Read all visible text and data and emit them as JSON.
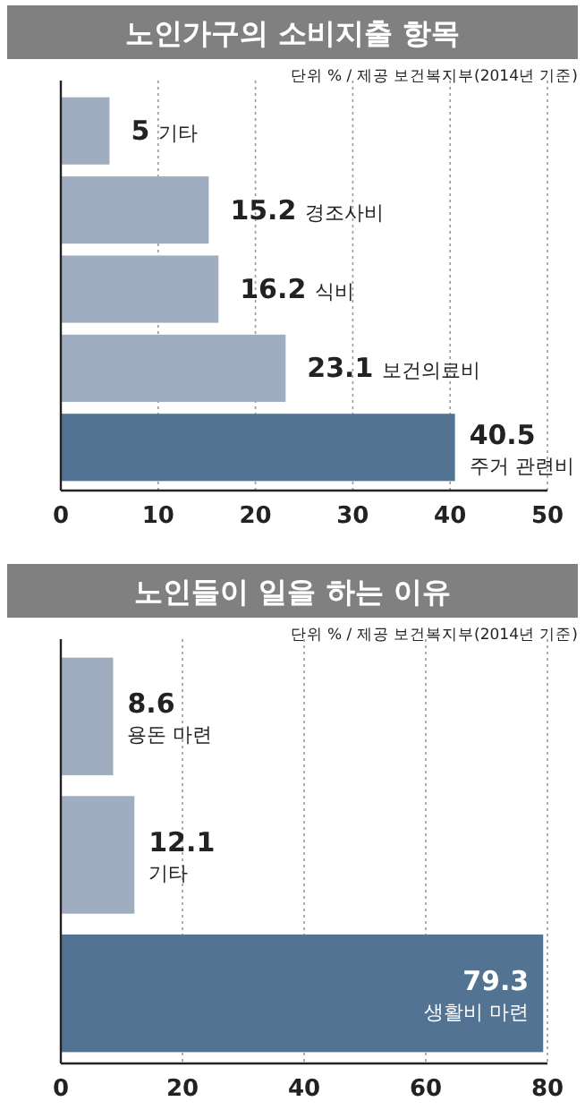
{
  "chart_data": [
    {
      "type": "bar",
      "orientation": "horizontal",
      "title": "노인가구의 소비지출 항목",
      "annotations": [
        "단위 % / 제공 보건복지부(2014년 기준)"
      ],
      "categories": [
        "기타",
        "경조사비",
        "식비",
        "보건의료비",
        "주거 관련비"
      ],
      "values": [
        5,
        15.2,
        16.2,
        23.1,
        40.5
      ],
      "colors": [
        "#a0adc1",
        "#a0adc1",
        "#a0adc1",
        "#a0adc1",
        "#527492"
      ],
      "xlim": [
        0,
        50
      ],
      "xticks": [
        0,
        10,
        20,
        30,
        40,
        50
      ],
      "grid": "x",
      "data_labels": true
    },
    {
      "type": "bar",
      "orientation": "horizontal",
      "title": "노인들이 일을 하는 이유",
      "annotations": [
        "단위 % / 제공 보건복지부(2014년 기준)"
      ],
      "categories": [
        "용돈 마련",
        "기타",
        "생활비 마련"
      ],
      "values": [
        8.6,
        12.1,
        79.3
      ],
      "colors": [
        "#a0adc1",
        "#a0adc1",
        "#527492"
      ],
      "xlim": [
        0,
        80
      ],
      "xticks": [
        0,
        20,
        40,
        60,
        80
      ],
      "grid": "x",
      "data_labels": true
    }
  ]
}
